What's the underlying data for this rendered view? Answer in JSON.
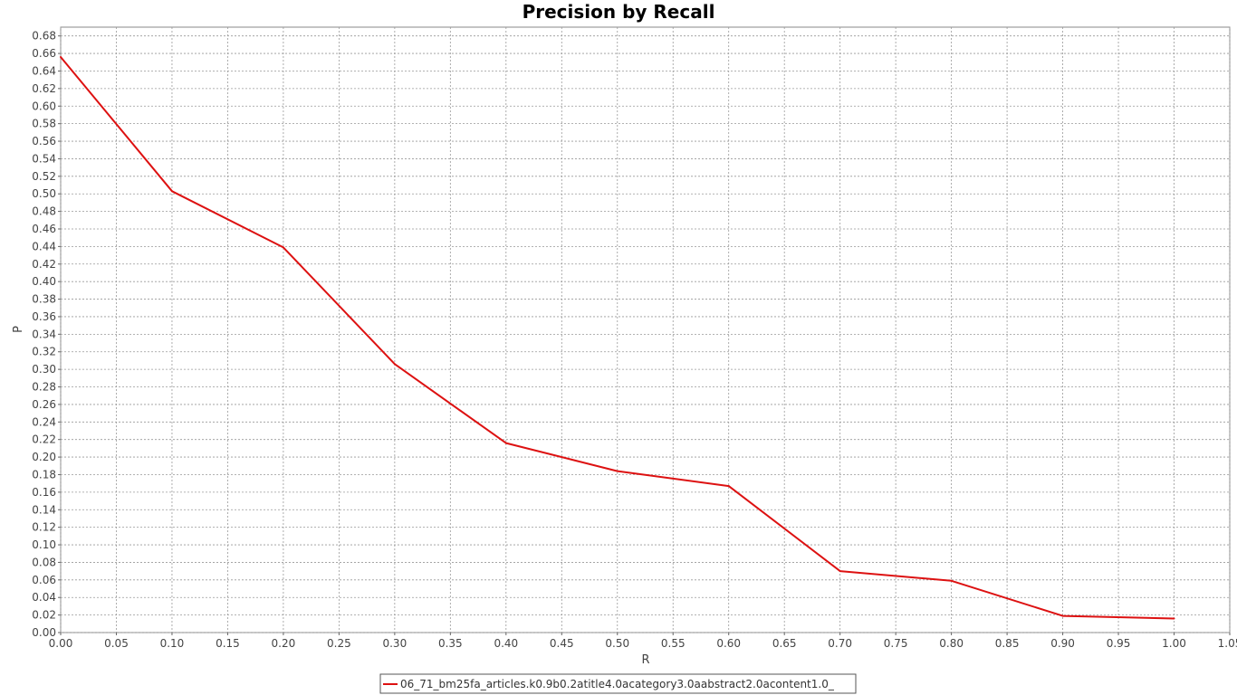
{
  "chart_data": {
    "type": "line",
    "title": "Precision by Recall",
    "xlabel": "R",
    "ylabel": "P",
    "xlim": [
      0.0,
      1.05
    ],
    "ylim": [
      0.0,
      0.69
    ],
    "x_ticks": [
      "0.00",
      "0.05",
      "0.10",
      "0.15",
      "0.20",
      "0.25",
      "0.30",
      "0.35",
      "0.40",
      "0.45",
      "0.50",
      "0.55",
      "0.60",
      "0.65",
      "0.70",
      "0.75",
      "0.80",
      "0.85",
      "0.90",
      "0.95",
      "1.00",
      "1.05"
    ],
    "y_ticks": [
      "0.00",
      "0.02",
      "0.04",
      "0.06",
      "0.08",
      "0.10",
      "0.12",
      "0.14",
      "0.16",
      "0.18",
      "0.20",
      "0.22",
      "0.24",
      "0.26",
      "0.28",
      "0.30",
      "0.32",
      "0.34",
      "0.36",
      "0.38",
      "0.40",
      "0.42",
      "0.44",
      "0.46",
      "0.48",
      "0.50",
      "0.52",
      "0.54",
      "0.56",
      "0.58",
      "0.60",
      "0.62",
      "0.64",
      "0.66",
      "0.68"
    ],
    "grid": true,
    "legend_position": "bottom-center",
    "series": [
      {
        "name": "06_71_bm25fa_articles.k0.9b0.2atitle4.0acategory3.0aabstract2.0acontent1.0_",
        "color": "#dd1111",
        "x": [
          0.0,
          0.1,
          0.2,
          0.3,
          0.4,
          0.5,
          0.6,
          0.7,
          0.8,
          0.9,
          1.0
        ],
        "values": [
          0.656,
          0.503,
          0.439,
          0.306,
          0.216,
          0.184,
          0.167,
          0.07,
          0.059,
          0.019,
          0.016
        ]
      }
    ]
  }
}
